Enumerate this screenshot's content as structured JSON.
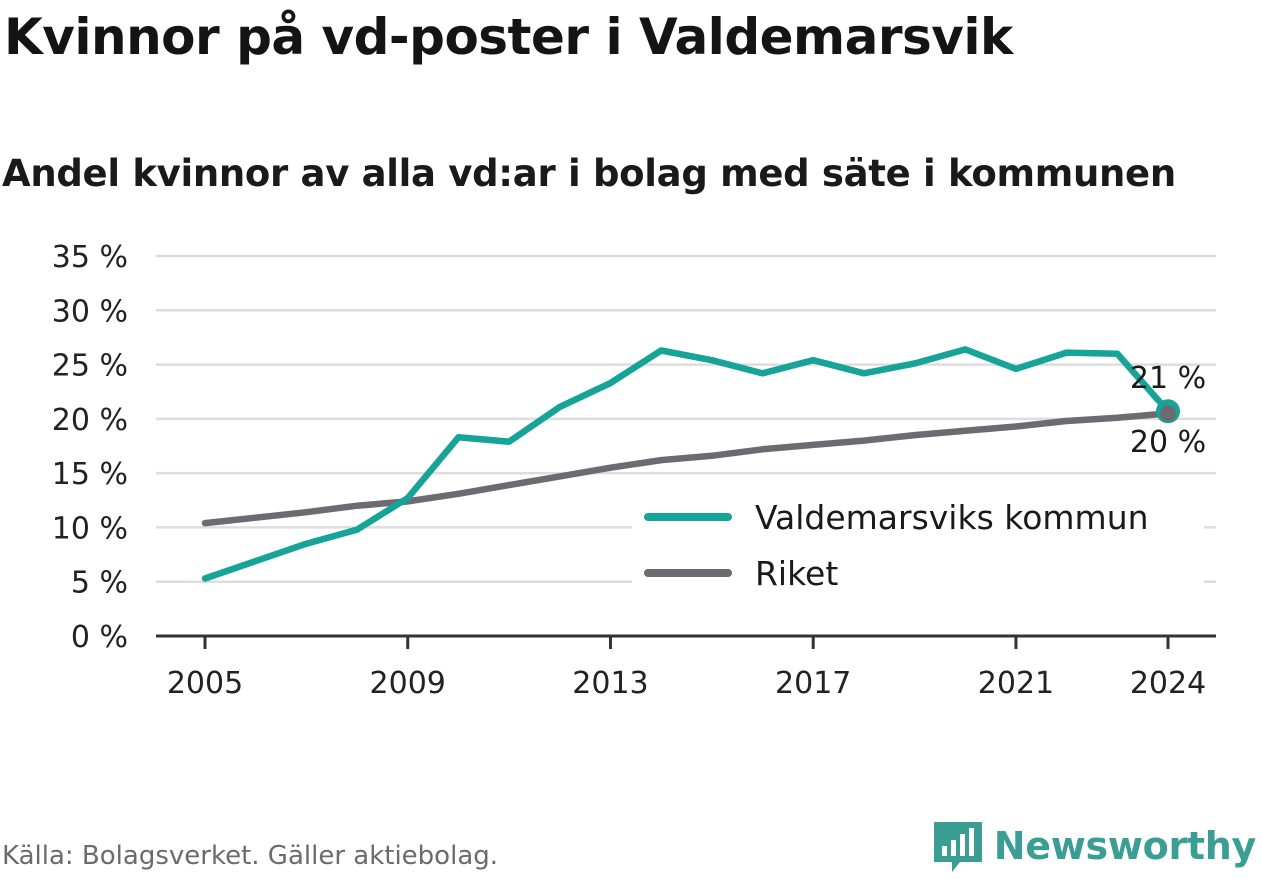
{
  "title": "Kvinnor på vd-poster i Valdemarsvik",
  "subtitle": "Andel kvinnor av alla vd:ar i bolag med säte i kommunen",
  "source": "Källa: Bolagsverket. Gäller aktiebolag.",
  "brand": "Newsworthy",
  "colors": {
    "kommun": "#16a398",
    "riket": "#6c6b72",
    "grid": "#dddddd",
    "axis": "#333333",
    "brand": "#3a9e95"
  },
  "chart_data": {
    "type": "line",
    "x": [
      2005,
      2006,
      2007,
      2008,
      2009,
      2010,
      2011,
      2012,
      2013,
      2014,
      2015,
      2016,
      2017,
      2018,
      2019,
      2020,
      2021,
      2022,
      2023,
      2024
    ],
    "series": [
      {
        "name": "Valdemarsviks kommun",
        "color": "#16a398",
        "values": [
          5.3,
          6.9,
          8.5,
          9.8,
          12.7,
          18.3,
          17.9,
          21.1,
          23.3,
          26.3,
          25.4,
          24.2,
          25.4,
          24.2,
          25.1,
          26.4,
          24.6,
          26.1,
          26.0,
          20.7
        ]
      },
      {
        "name": "Riket",
        "color": "#6c6b72",
        "values": [
          10.4,
          10.9,
          11.4,
          12.0,
          12.4,
          13.1,
          13.9,
          14.7,
          15.5,
          16.2,
          16.6,
          17.2,
          17.6,
          18.0,
          18.5,
          18.9,
          19.3,
          19.8,
          20.1,
          20.5
        ]
      }
    ],
    "end_labels": [
      "21 %",
      "20 %"
    ],
    "x_ticks": [
      2005,
      2009,
      2013,
      2017,
      2021,
      2024
    ],
    "x_tick_labels": [
      "2005",
      "2009",
      "2013",
      "2017",
      "2021",
      "2024"
    ],
    "y_ticks": [
      0,
      5,
      10,
      15,
      20,
      25,
      30,
      35
    ],
    "y_tick_labels": [
      "0 %",
      "5 %",
      "10 %",
      "15 %",
      "20 %",
      "25 %",
      "30 %",
      "35 %"
    ],
    "xlim": [
      2005,
      2024
    ],
    "ylim": [
      0,
      35
    ],
    "grid": true,
    "legend_position": "bottom-right"
  }
}
